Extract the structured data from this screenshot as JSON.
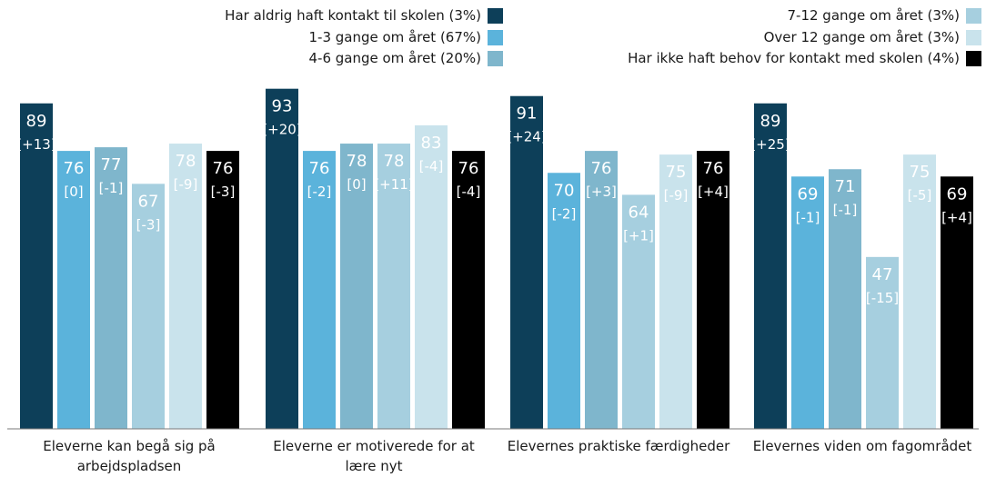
{
  "chart_data": {
    "type": "bar",
    "categories": [
      "Eleverne kan begå sig på arbejdspladsen",
      "Eleverne er motiverede for at lære nyt",
      "Elevernes praktiske færdigheder",
      "Elevernes viden om fagområdet"
    ],
    "series": [
      {
        "name": "Har aldrig haft kontakt til skolen (3%)",
        "color": "#0d3f59",
        "values": [
          89,
          93,
          91,
          89
        ],
        "labels": [
          "[+13]",
          "[+20]",
          "[+24]",
          "[+25]"
        ]
      },
      {
        "name": "1-3 gange om året (67%)",
        "color": "#5bb3db",
        "values": [
          76,
          76,
          70,
          69
        ],
        "labels": [
          "[0]",
          "[-2]",
          "[-2]",
          "[-1]"
        ]
      },
      {
        "name": "4-6 gange om året (20%)",
        "color": "#7fb6cc",
        "values": [
          77,
          78,
          76,
          71
        ],
        "labels": [
          "[-1]",
          "[0]",
          "[+3]",
          "[-1]"
        ]
      },
      {
        "name": "7-12 gange om året (3%)",
        "color": "#a6cfdf",
        "values": [
          67,
          78,
          64,
          47
        ],
        "labels": [
          "[-3]",
          "[+11]",
          "[+1]",
          "[-15]"
        ]
      },
      {
        "name": "Over 12 gange om året (3%)",
        "color": "#c9e3ec",
        "values": [
          78,
          83,
          75,
          75
        ],
        "labels": [
          "[-9]",
          "[-4]",
          "[-9]",
          "[-5]"
        ]
      },
      {
        "name": "Har ikke haft behov for kontakt med skolen (4%)",
        "color": "#000000",
        "values": [
          76,
          76,
          76,
          69
        ],
        "labels": [
          "[-3]",
          "[-4]",
          "[+4]",
          "[+4]"
        ]
      }
    ],
    "ylim": [
      0,
      100
    ],
    "grid": false,
    "legend_position": "top"
  }
}
